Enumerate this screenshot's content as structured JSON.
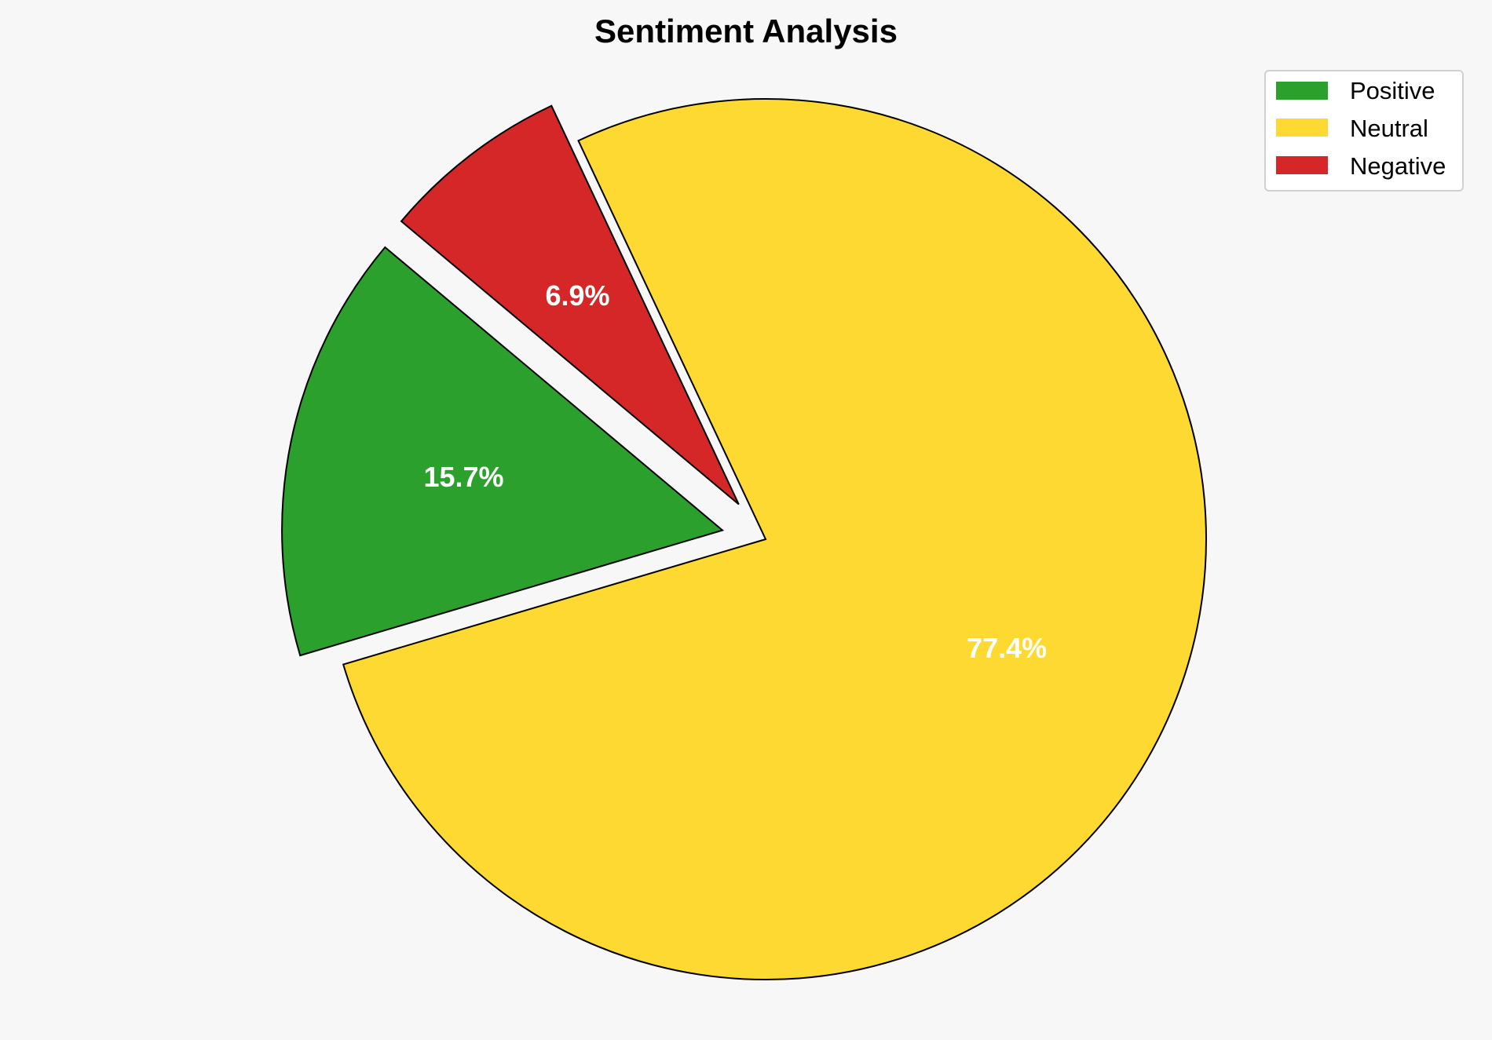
{
  "chart_data": {
    "type": "pie",
    "title": "Sentiment Analysis",
    "categories": [
      "Positive",
      "Neutral",
      "Negative"
    ],
    "values": [
      15.7,
      77.4,
      6.9
    ],
    "labels": [
      "15.7%",
      "77.4%",
      "6.9%"
    ],
    "colors": [
      "#2ca02c",
      "#fdd931",
      "#d62728"
    ],
    "explode": [
      0.1,
      0,
      0.1
    ],
    "start_angle": 140,
    "direction": "counterclockwise",
    "edge_color": "#000000",
    "legend_position": "top-right",
    "background": "#f7f7f7"
  }
}
